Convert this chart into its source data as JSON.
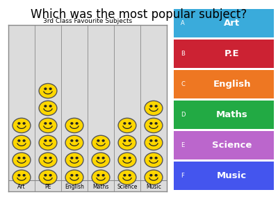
{
  "title": "Which was the most popular subject?",
  "chart_title": "3rd Class Favourite Subjects",
  "categories": [
    "Art",
    "PE",
    "English",
    "Maths",
    "Science",
    "Music"
  ],
  "face_counts": [
    4,
    6,
    4,
    3,
    4,
    5
  ],
  "choice_labels": [
    "Art",
    "P.E",
    "English",
    "Maths",
    "Science",
    "Music"
  ],
  "choice_letters": [
    "A",
    "B",
    "C",
    "D",
    "E",
    "F"
  ],
  "choice_colors": [
    "#3AABDB",
    "#CC2233",
    "#EE7722",
    "#22AA44",
    "#BB66CC",
    "#4455EE"
  ],
  "bg_color": "#ffffff",
  "chart_bg": "#dcdcdc",
  "chart_border": "#888888",
  "face_color": "#FFD700",
  "face_edge": "#555555",
  "title_fontsize": 12,
  "chart_title_fontsize": 6.5
}
